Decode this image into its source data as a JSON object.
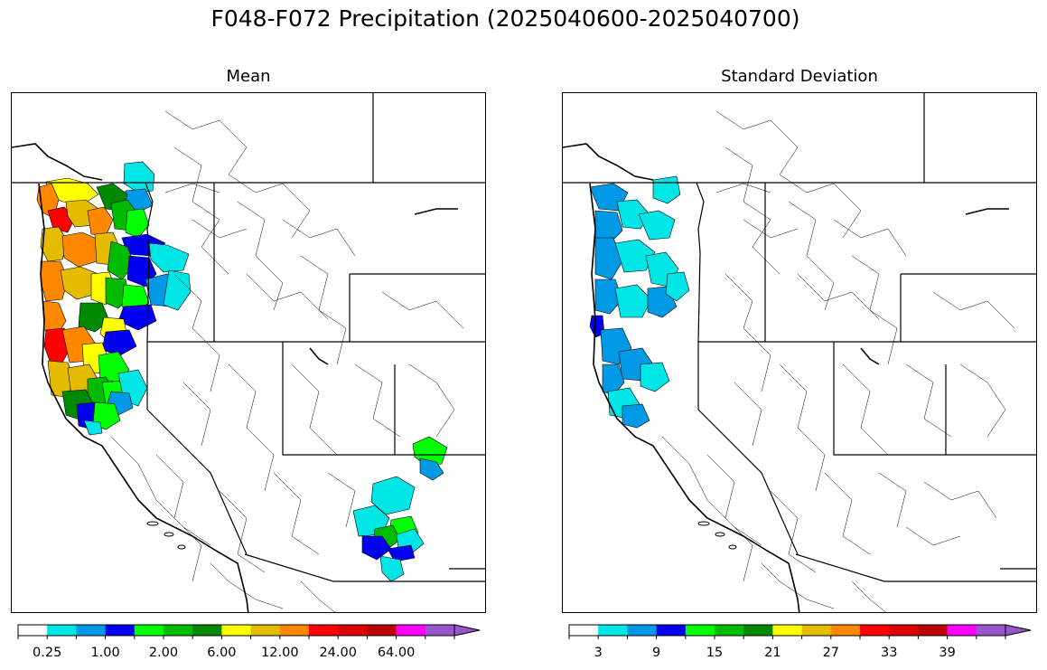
{
  "title": "F048-F072 Precipitation (2025040600-2025040700)",
  "panels": [
    {
      "title": "Mean",
      "colorbar_ticks": [
        "0.25",
        "1.00",
        "2.00",
        "6.00",
        "12.00",
        "24.00",
        "64.00"
      ]
    },
    {
      "title": "Standard Deviation",
      "colorbar_ticks": [
        "3",
        "9",
        "15",
        "21",
        "27",
        "33",
        "39"
      ]
    }
  ],
  "colors": {
    "palette": [
      "#ffffff",
      "#00e5e5",
      "#0099e5",
      "#0000ee",
      "#00ff00",
      "#00bb00",
      "#008800",
      "#ffff00",
      "#e5bb00",
      "#ff8800",
      "#ff0000",
      "#dd0000",
      "#bb0000",
      "#ff00ff",
      "#9955cc"
    ]
  }
}
